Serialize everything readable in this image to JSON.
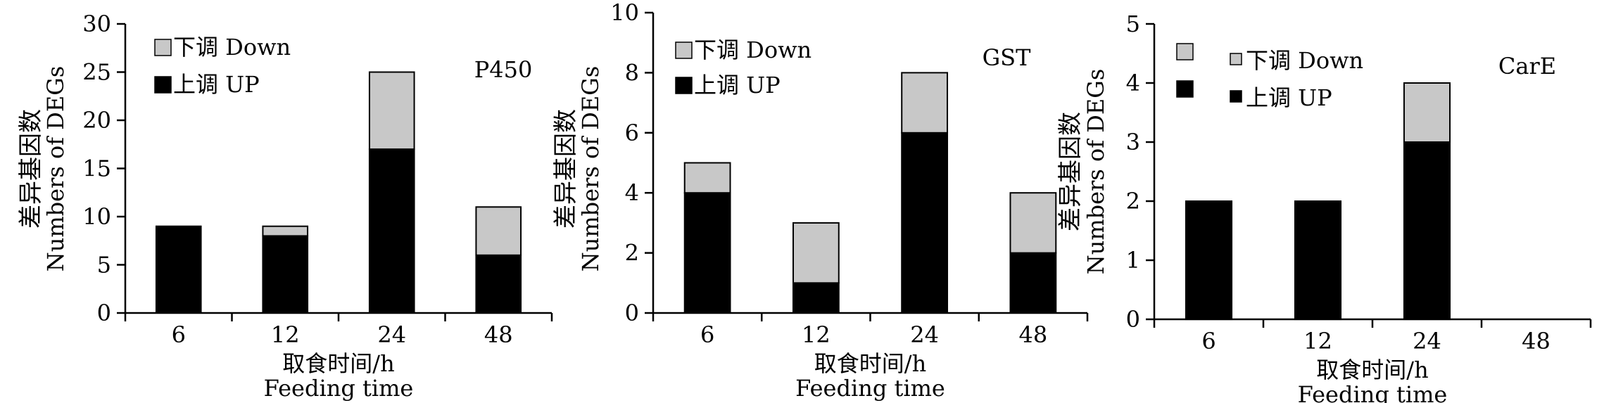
{
  "chart_data": [
    {
      "type": "bar",
      "stacked": true,
      "annotation": "P450",
      "categories": [
        "6",
        "12",
        "24",
        "48"
      ],
      "series": [
        {
          "name": "上调 UP",
          "values": [
            9,
            8,
            17,
            6
          ],
          "color": "#000000"
        },
        {
          "name": "下调 Down",
          "values": [
            0,
            1,
            8,
            5
          ],
          "color": "#c8c8c8"
        }
      ],
      "ylim": [
        0,
        30
      ],
      "yticks": [
        "0",
        "5",
        "10",
        "15",
        "20",
        "25",
        "30"
      ],
      "ylabel_cn": "差异基因数",
      "ylabel_en": "Numbers of DEGs",
      "xlabel_cn": "取食时间/h",
      "xlabel_en": "Feeding time",
      "legend": [
        {
          "label": "下调 Down",
          "color": "#c8c8c8"
        },
        {
          "label": "上调 UP",
          "color": "#000000"
        }
      ],
      "legend_position": "top-left",
      "grid": false
    },
    {
      "type": "bar",
      "stacked": true,
      "annotation": "GST",
      "categories": [
        "6",
        "12",
        "24",
        "48"
      ],
      "series": [
        {
          "name": "上调 UP",
          "values": [
            4,
            1,
            6,
            2
          ],
          "color": "#000000"
        },
        {
          "name": "下调 Down",
          "values": [
            1,
            2,
            2,
            2
          ],
          "color": "#c8c8c8"
        }
      ],
      "ylim": [
        0,
        10
      ],
      "yticks": [
        "0",
        "2",
        "4",
        "6",
        "8",
        "10"
      ],
      "ylabel_cn": "差异基因数",
      "ylabel_en": "Numbers of DEGs",
      "xlabel_cn": "取食时间/h",
      "xlabel_en": "Feeding time",
      "legend": [
        {
          "label": "下调 Down",
          "color": "#c8c8c8"
        },
        {
          "label": "上调 UP",
          "color": "#000000"
        }
      ],
      "legend_position": "top-left",
      "grid": false
    },
    {
      "type": "bar",
      "stacked": true,
      "annotation": "CarE",
      "categories": [
        "6",
        "12",
        "24",
        "48"
      ],
      "series": [
        {
          "name": "上调 UP",
          "values": [
            2,
            2,
            3,
            0
          ],
          "color": "#000000"
        },
        {
          "name": "下调 Down",
          "values": [
            0,
            0,
            1,
            0
          ],
          "color": "#c8c8c8"
        }
      ],
      "ylim": [
        0,
        5
      ],
      "yticks": [
        "0",
        "1",
        "2",
        "3",
        "4",
        "5"
      ],
      "ylabel_cn": "差异基因数",
      "ylabel_en": "Numbers of DEGs",
      "xlabel_cn": "取食时间/h",
      "xlabel_en": "Feeding time",
      "legend": [
        {
          "label": "下调 Down",
          "color": "#c8c8c8"
        },
        {
          "label": "上调 UP",
          "color": "#000000"
        }
      ],
      "legend_position": "top-left",
      "grid": false
    }
  ]
}
